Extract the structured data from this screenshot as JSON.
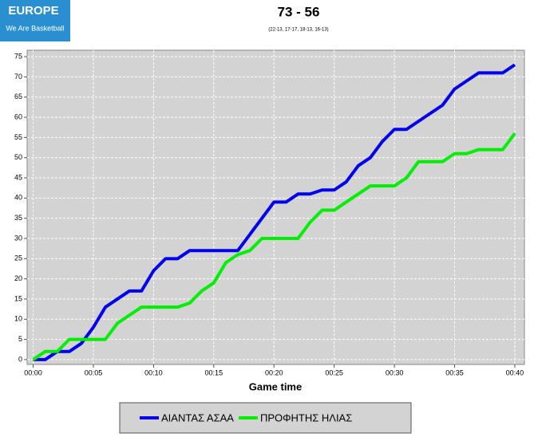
{
  "logo": {
    "line1": "EUROPE",
    "line2": "We Are Basketball"
  },
  "chart_data": {
    "type": "line",
    "title": "73 - 56",
    "subtitle": "(22-13, 17-17, 18-13, 16-13)",
    "xlabel": "Game time",
    "x": [
      0,
      1,
      2,
      3,
      4,
      5,
      6,
      7,
      8,
      9,
      10,
      11,
      12,
      13,
      14,
      15,
      16,
      17,
      18,
      19,
      20,
      21,
      22,
      23,
      24,
      25,
      26,
      27,
      28,
      29,
      30,
      31,
      32,
      33,
      34,
      35,
      36,
      37,
      38,
      39,
      40
    ],
    "series": [
      {
        "name": "ΑΙΑΝΤΑΣ ΑΣΑΑ",
        "color": "#0000ee",
        "values": [
          0,
          0,
          2,
          2,
          4,
          8,
          13,
          15,
          17,
          17,
          22,
          25,
          25,
          27,
          27,
          27,
          27,
          27,
          31,
          35,
          39,
          39,
          41,
          41,
          42,
          42,
          44,
          48,
          50,
          54,
          57,
          57,
          59,
          61,
          63,
          67,
          69,
          71,
          71,
          71,
          73
        ]
      },
      {
        "name": "ΠΡΟΦΗΤΗΣ ΗΛΙΑΣ",
        "color": "#00ee00",
        "values": [
          0,
          2,
          2,
          5,
          5,
          5,
          5,
          9,
          11,
          13,
          13,
          13,
          13,
          14,
          17,
          19,
          24,
          26,
          27,
          30,
          30,
          30,
          30,
          34,
          37,
          37,
          39,
          41,
          43,
          43,
          43,
          45,
          49,
          49,
          49,
          51,
          51,
          52,
          52,
          52,
          56
        ]
      }
    ],
    "xlim": [
      -0.5,
      40.8
    ],
    "xticks": [
      {
        "value": 0,
        "label": "00:00"
      },
      {
        "value": 5,
        "label": "00:05"
      },
      {
        "value": 10,
        "label": "00:10"
      },
      {
        "value": 15,
        "label": "00:15"
      },
      {
        "value": 20,
        "label": "00:20"
      },
      {
        "value": 25,
        "label": "00:25"
      },
      {
        "value": 30,
        "label": "00:30"
      },
      {
        "value": 35,
        "label": "00:35"
      },
      {
        "value": 40,
        "label": "00:40"
      }
    ],
    "ylim": [
      -1.2,
      76.6
    ],
    "yticks": [
      0,
      5,
      10,
      15,
      20,
      25,
      30,
      35,
      40,
      45,
      50,
      55,
      60,
      65,
      70,
      75
    ],
    "grid": true
  }
}
